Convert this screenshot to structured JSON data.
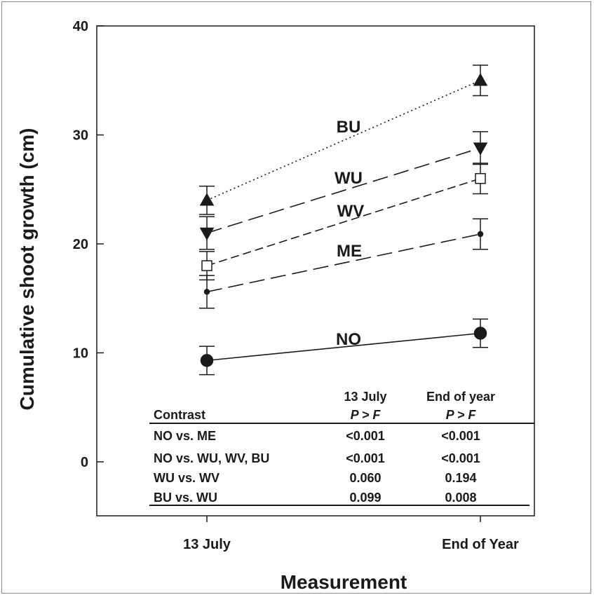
{
  "chart_data": {
    "type": "line",
    "categories": [
      "13 July",
      "End of Year"
    ],
    "xlabel": "Measurement",
    "ylabel": "Cumulative shoot growth (cm)",
    "ylim": [
      -5,
      40
    ],
    "yticks": [
      0,
      10,
      20,
      30,
      40
    ],
    "grid": false,
    "series": [
      {
        "name": "BU",
        "values": [
          24.0,
          35.0
        ],
        "errors": [
          1.3,
          1.4
        ],
        "marker": "triangle-up",
        "fill": "filled",
        "line": "dotted"
      },
      {
        "name": "WU",
        "values": [
          21.0,
          28.8
        ],
        "errors": [
          1.5,
          1.5
        ],
        "marker": "triangle-down",
        "fill": "filled",
        "line": "long-dash"
      },
      {
        "name": "WV",
        "values": [
          18.0,
          26.0
        ],
        "errors": [
          1.3,
          1.4
        ],
        "marker": "square",
        "fill": "open",
        "line": "short-dash"
      },
      {
        "name": "ME",
        "values": [
          15.6,
          20.9
        ],
        "errors": [
          1.5,
          1.4
        ],
        "marker": "dot",
        "fill": "filled",
        "line": "long-dash"
      },
      {
        "name": "NO",
        "values": [
          9.3,
          11.8
        ],
        "errors": [
          1.3,
          1.3
        ],
        "marker": "circle",
        "fill": "filled",
        "line": "solid"
      }
    ],
    "table": {
      "header_top": [
        "",
        "13 July",
        "End of year"
      ],
      "header_bottom": [
        "Contrast",
        "P > F",
        "P > F"
      ],
      "rows": [
        [
          "NO vs. ME",
          "<0.001",
          "<0.001"
        ],
        [
          "NO vs. WU, WV, BU",
          "<0.001",
          "<0.001"
        ],
        [
          "WU vs. WV",
          "0.060",
          "0.194"
        ],
        [
          "BU vs. WU",
          "0.099",
          "0.008"
        ]
      ]
    }
  }
}
